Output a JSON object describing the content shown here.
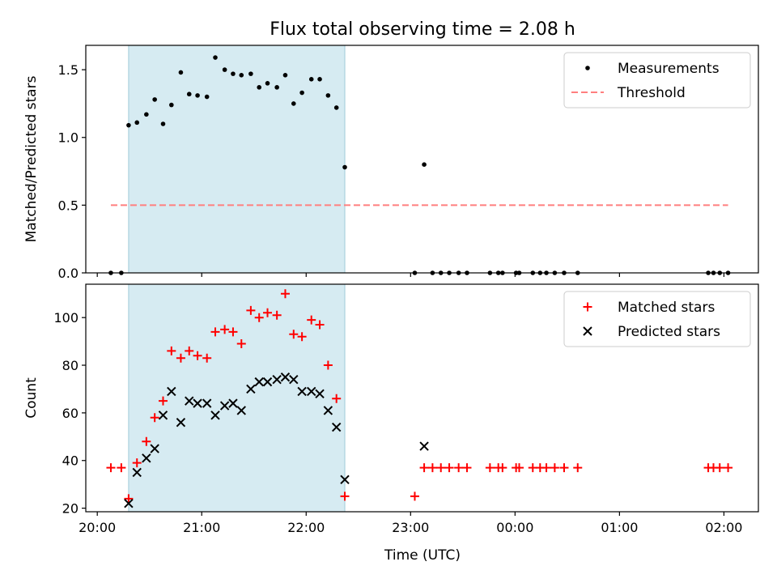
{
  "chart_data": {
    "title": "Flux total observing time = 2.08 h",
    "xlabel": "Time (UTC)",
    "xlim_hours": [
      19.89,
      26.33
    ],
    "xticks": [
      {
        "t": 20,
        "label": "20:00"
      },
      {
        "t": 21,
        "label": "21:00"
      },
      {
        "t": 22,
        "label": "22:00"
      },
      {
        "t": 23,
        "label": "23:00"
      },
      {
        "t": 24,
        "label": "00:00"
      },
      {
        "t": 25,
        "label": "01:00"
      },
      {
        "t": 26,
        "label": "02:00"
      }
    ],
    "observing_span_hours": [
      20.3,
      22.37
    ],
    "span_color": "#add8e6",
    "panels": [
      {
        "type": "scatter",
        "ylabel": "Matched/Predicted stars",
        "ylim": [
          0,
          1.68
        ],
        "yticks": [
          0.0,
          0.5,
          1.0,
          1.5
        ],
        "ytick_labels": [
          "0.0",
          "0.5",
          "1.0",
          "1.5"
        ],
        "legend_position": "top-right",
        "series": [
          {
            "name": "Measurements",
            "marker": "dot",
            "color": "#000000",
            "x": [
              20.13,
              20.23,
              20.3,
              20.38,
              20.47,
              20.55,
              20.63,
              20.71,
              20.8,
              20.88,
              20.96,
              21.05,
              21.13,
              21.22,
              21.3,
              21.38,
              21.47,
              21.55,
              21.63,
              21.72,
              21.8,
              21.88,
              21.96,
              22.05,
              22.13,
              22.21,
              22.29,
              22.37,
              23.04,
              23.13,
              23.21,
              23.29,
              23.37,
              23.46,
              23.54,
              23.76,
              23.84,
              23.88,
              24.01,
              24.04,
              24.17,
              24.24,
              24.3,
              24.38,
              24.47,
              24.6,
              25.85,
              25.9,
              25.96,
              26.04
            ],
            "y": [
              0,
              0,
              1.09,
              1.11,
              1.17,
              1.28,
              1.1,
              1.24,
              1.48,
              1.32,
              1.31,
              1.3,
              1.59,
              1.5,
              1.47,
              1.46,
              1.47,
              1.37,
              1.4,
              1.37,
              1.46,
              1.25,
              1.33,
              1.43,
              1.43,
              1.31,
              1.22,
              0.78,
              0,
              0.8,
              0,
              0,
              0,
              0,
              0,
              0,
              0,
              0,
              0,
              0,
              0,
              0,
              0,
              0,
              0,
              0,
              0,
              0,
              0,
              0
            ]
          },
          {
            "name": "Threshold",
            "style": "dashed",
            "color": "#ff7f7f",
            "x": [
              20.13,
              26.04
            ],
            "y": [
              0.5,
              0.5
            ]
          }
        ]
      },
      {
        "type": "scatter",
        "ylabel": "Count",
        "ylim": [
          18.5,
          114
        ],
        "yticks": [
          20,
          40,
          60,
          80,
          100
        ],
        "ytick_labels": [
          "20",
          "40",
          "60",
          "80",
          "100"
        ],
        "legend_position": "top-right",
        "series": [
          {
            "name": "Matched stars",
            "marker": "plus",
            "color": "#ff0000",
            "x": [
              20.13,
              20.23,
              20.3,
              20.38,
              20.47,
              20.55,
              20.63,
              20.71,
              20.8,
              20.88,
              20.96,
              21.05,
              21.13,
              21.22,
              21.3,
              21.38,
              21.47,
              21.55,
              21.63,
              21.72,
              21.8,
              21.88,
              21.96,
              22.05,
              22.13,
              22.21,
              22.29,
              22.37,
              23.04,
              23.13,
              23.21,
              23.29,
              23.37,
              23.46,
              23.54,
              23.76,
              23.84,
              23.88,
              24.01,
              24.04,
              24.17,
              24.24,
              24.3,
              24.38,
              24.47,
              24.6,
              25.85,
              25.9,
              25.96,
              26.04
            ],
            "y": [
              37,
              37,
              24,
              39,
              48,
              58,
              65,
              86,
              83,
              86,
              84,
              83,
              94,
              95,
              94,
              89,
              103,
              100,
              102,
              101,
              110,
              93,
              92,
              99,
              97,
              80,
              66,
              25,
              25,
              37,
              37,
              37,
              37,
              37,
              37,
              37,
              37,
              37,
              37,
              37,
              37,
              37,
              37,
              37,
              37,
              37,
              37,
              37,
              37,
              37
            ]
          },
          {
            "name": "Predicted stars",
            "marker": "x",
            "color": "#000000",
            "x": [
              20.3,
              20.38,
              20.47,
              20.55,
              20.63,
              20.71,
              20.8,
              20.88,
              20.96,
              21.05,
              21.13,
              21.22,
              21.3,
              21.38,
              21.47,
              21.55,
              21.63,
              21.72,
              21.8,
              21.88,
              21.96,
              22.05,
              22.13,
              22.21,
              22.29,
              22.37,
              23.13
            ],
            "y": [
              22,
              35,
              41,
              45,
              59,
              69,
              56,
              65,
              64,
              64,
              59,
              63,
              64,
              61,
              70,
              73,
              73,
              74,
              75,
              74,
              69,
              69,
              68,
              61,
              54,
              32,
              46
            ]
          }
        ]
      }
    ]
  }
}
